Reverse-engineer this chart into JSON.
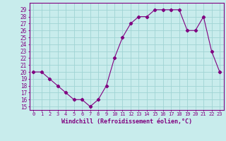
{
  "x": [
    0,
    1,
    2,
    3,
    4,
    5,
    6,
    7,
    8,
    9,
    10,
    11,
    12,
    13,
    14,
    15,
    16,
    17,
    18,
    19,
    20,
    21,
    22,
    23
  ],
  "y": [
    20,
    20,
    19,
    18,
    17,
    16,
    16,
    15,
    16,
    18,
    22,
    25,
    27,
    28,
    28,
    29,
    29,
    29,
    29,
    26,
    26,
    28,
    23,
    20
  ],
  "line_color": "#800080",
  "marker": "D",
  "marker_size": 2.2,
  "bg_color": "#c8ecec",
  "grid_color": "#a0d4d4",
  "xlabel": "Windchill (Refroidissement éolien,°C)",
  "xlabel_color": "#800080",
  "ylabel_ticks": [
    15,
    16,
    17,
    18,
    19,
    20,
    21,
    22,
    23,
    24,
    25,
    26,
    27,
    28,
    29
  ],
  "ylim": [
    14.5,
    30.0
  ],
  "xlim": [
    -0.5,
    23.5
  ],
  "xtick_labels": [
    "0",
    "1",
    "2",
    "3",
    "4",
    "5",
    "6",
    "7",
    "8",
    "9",
    "10",
    "11",
    "12",
    "13",
    "14",
    "15",
    "16",
    "17",
    "18",
    "19",
    "20",
    "21",
    "22",
    "23"
  ],
  "tick_color": "#800080",
  "ytick_fontsize": 5.5,
  "xtick_fontsize": 5.0,
  "xlabel_fontsize": 6.0
}
